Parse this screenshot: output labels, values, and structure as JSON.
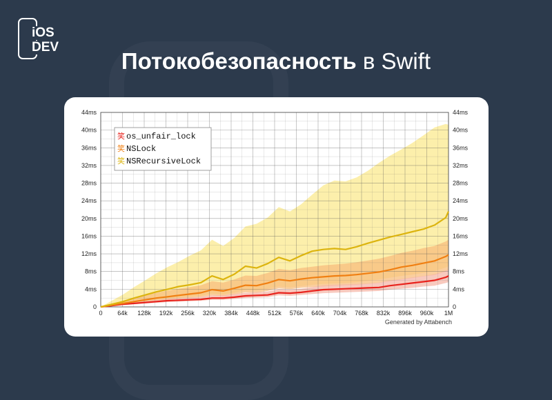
{
  "logo": {
    "line1": "iOS",
    "line2": "DEV"
  },
  "headline": {
    "bold": "Потокобезопасность",
    "rest": " в Swift"
  },
  "chart_data": {
    "type": "line",
    "x_ticks": [
      "0",
      "64k",
      "128k",
      "192k",
      "256k",
      "320k",
      "384k",
      "448k",
      "512k",
      "576k",
      "640k",
      "704k",
      "768k",
      "832k",
      "896k",
      "960k",
      "1M"
    ],
    "y_ticks": [
      "0",
      "4ms",
      "8ms",
      "12ms",
      "16ms",
      "20ms",
      "24ms",
      "28ms",
      "32ms",
      "36ms",
      "40ms",
      "44ms"
    ],
    "xlim": [
      0,
      1000000
    ],
    "ylim": [
      0,
      44
    ],
    "grid": true,
    "legend_position": "top-left",
    "legend_glyph": "笑",
    "credit": "Generated by Attabench",
    "x": [
      0,
      32000,
      64000,
      96000,
      128000,
      160000,
      192000,
      224000,
      256000,
      288000,
      320000,
      352000,
      384000,
      416000,
      448000,
      480000,
      512000,
      544000,
      576000,
      608000,
      640000,
      672000,
      704000,
      736000,
      768000,
      800000,
      832000,
      864000,
      896000,
      928000,
      960000,
      992000,
      1000000
    ],
    "series": [
      {
        "name": "os_unfair_lock",
        "color": "#e8231d",
        "band_color": "#f5b7a8",
        "values": [
          0,
          0.3,
          0.6,
          0.8,
          1.0,
          1.2,
          1.4,
          1.5,
          1.6,
          1.7,
          2.0,
          2.0,
          2.2,
          2.5,
          2.6,
          2.7,
          3.2,
          3.1,
          3.3,
          3.6,
          3.9,
          4.0,
          4.1,
          4.2,
          4.3,
          4.4,
          4.8,
          5.1,
          5.4,
          5.7,
          6.0,
          6.7,
          7.0
        ],
        "upper": [
          0,
          0.4,
          0.8,
          1.1,
          1.3,
          1.6,
          1.8,
          2.0,
          2.1,
          2.3,
          2.6,
          2.6,
          2.9,
          3.2,
          3.3,
          3.5,
          4.0,
          3.9,
          4.1,
          4.5,
          4.9,
          5.0,
          5.1,
          5.2,
          5.3,
          5.5,
          6.0,
          6.3,
          6.7,
          7.0,
          7.4,
          8.2,
          8.5
        ],
        "lower": [
          0,
          0.2,
          0.4,
          0.6,
          0.8,
          0.9,
          1.1,
          1.2,
          1.3,
          1.4,
          1.6,
          1.6,
          1.8,
          2.0,
          2.1,
          2.2,
          2.6,
          2.5,
          2.7,
          2.9,
          3.1,
          3.2,
          3.3,
          3.4,
          3.5,
          3.6,
          3.9,
          4.1,
          4.3,
          4.6,
          4.8,
          5.4,
          5.6
        ]
      },
      {
        "name": "NSLock",
        "color": "#f07f12",
        "band_color": "#f8bd7e",
        "values": [
          0,
          0.4,
          0.8,
          1.2,
          1.6,
          2.0,
          2.3,
          2.6,
          2.9,
          3.2,
          3.9,
          3.6,
          4.2,
          4.9,
          4.8,
          5.4,
          6.2,
          5.9,
          6.3,
          6.6,
          6.8,
          7.0,
          7.1,
          7.3,
          7.6,
          7.9,
          8.4,
          9.0,
          9.4,
          9.9,
          10.4,
          11.4,
          11.8
        ],
        "upper": [
          0,
          0.7,
          1.4,
          2.0,
          2.6,
          3.2,
          3.7,
          4.1,
          4.5,
          4.9,
          5.8,
          5.5,
          6.2,
          7.1,
          7.0,
          7.7,
          8.6,
          8.3,
          8.8,
          9.1,
          9.4,
          9.6,
          9.8,
          10.1,
          10.5,
          10.9,
          11.5,
          12.2,
          12.7,
          13.3,
          13.8,
          14.8,
          15.2
        ],
        "lower": [
          0,
          0.2,
          0.5,
          0.8,
          1.1,
          1.4,
          1.6,
          1.8,
          2.0,
          2.2,
          2.6,
          2.4,
          2.8,
          3.3,
          3.2,
          3.6,
          4.2,
          4.0,
          4.3,
          4.5,
          4.6,
          4.8,
          4.9,
          5.0,
          5.2,
          5.4,
          5.8,
          6.2,
          6.5,
          6.9,
          7.2,
          8.0,
          8.3
        ]
      },
      {
        "name": "NSRecursiveLock",
        "color": "#dcb40e",
        "band_color": "#fbe98f",
        "values": [
          0,
          0.6,
          1.2,
          2.0,
          2.7,
          3.4,
          4.0,
          4.6,
          5.0,
          5.5,
          7.0,
          6.2,
          7.4,
          9.2,
          8.8,
          9.8,
          11.2,
          10.4,
          11.6,
          12.6,
          13.0,
          13.2,
          13.0,
          13.6,
          14.4,
          15.1,
          15.8,
          16.4,
          17.0,
          17.6,
          18.5,
          20.2,
          21.6
        ],
        "upper": [
          0,
          1.4,
          2.8,
          4.5,
          6.0,
          7.6,
          9.0,
          10.2,
          11.6,
          12.8,
          15.2,
          13.8,
          15.6,
          18.2,
          18.8,
          20.2,
          22.6,
          21.6,
          23.2,
          25.4,
          27.5,
          28.6,
          28.4,
          29.3,
          30.8,
          32.6,
          34.2,
          35.6,
          37.1,
          38.8,
          40.6,
          41.4,
          41.2
        ],
        "lower": [
          0,
          0.3,
          0.7,
          1.0,
          1.3,
          1.6,
          1.9,
          2.1,
          2.3,
          2.5,
          3.0,
          2.8,
          3.2,
          3.8,
          3.7,
          4.1,
          4.6,
          4.4,
          4.7,
          5.0,
          5.2,
          5.3,
          5.4,
          5.6,
          5.9,
          6.2,
          6.6,
          7.0,
          7.3,
          7.7,
          8.1,
          8.9,
          9.2
        ]
      }
    ]
  }
}
